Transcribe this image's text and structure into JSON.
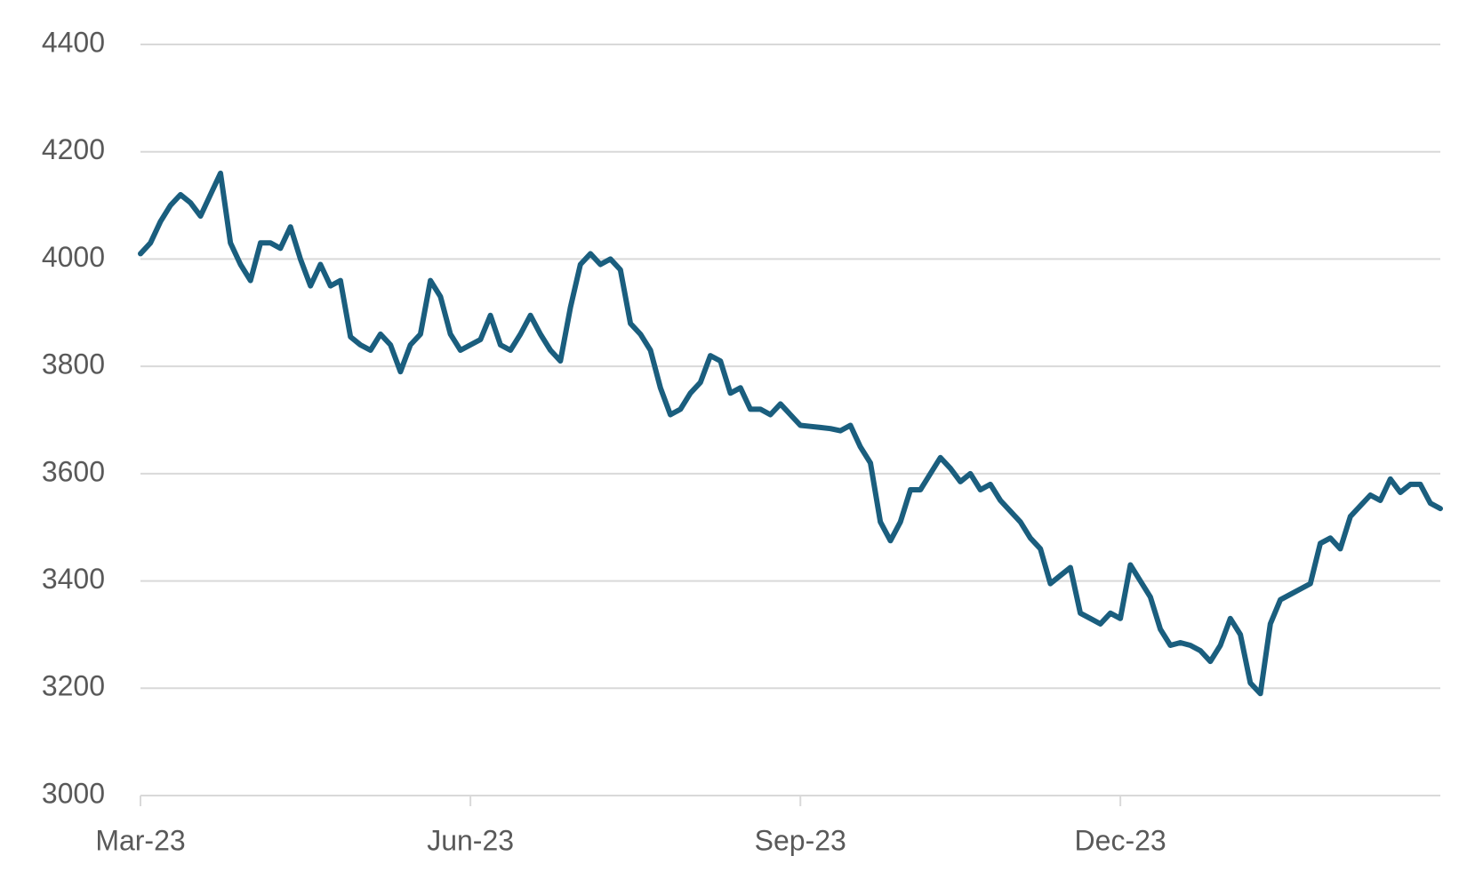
{
  "chart_data": {
    "type": "line",
    "categories": [
      "Mar-23",
      null,
      null,
      null,
      null,
      null,
      null,
      null,
      null,
      null,
      null,
      null,
      null,
      null,
      null,
      null,
      null,
      null,
      null,
      null,
      null,
      null,
      null,
      null,
      null,
      null,
      null,
      null,
      null,
      null,
      null,
      null,
      null,
      "Jun-23",
      null,
      null,
      null,
      null,
      null,
      null,
      null,
      null,
      null,
      null,
      null,
      null,
      null,
      null,
      null,
      null,
      null,
      null,
      null,
      null,
      null,
      null,
      null,
      null,
      null,
      null,
      null,
      null,
      null,
      null,
      null,
      null,
      "Sep-23",
      null,
      null,
      null,
      null,
      null,
      null,
      null,
      null,
      null,
      null,
      null,
      null,
      null,
      null,
      null,
      null,
      null,
      null,
      null,
      null,
      null,
      null,
      null,
      null,
      null,
      null,
      null,
      null,
      null,
      null,
      null,
      "Dec-23",
      null,
      null,
      null,
      null,
      null,
      null,
      null,
      null,
      null,
      null,
      null,
      null,
      null,
      null,
      null,
      null,
      null,
      null,
      null,
      null,
      null,
      null,
      null,
      null,
      null,
      null,
      null,
      null,
      null,
      null,
      null,
      null
    ],
    "series": [
      {
        "color": "#1a5e7e",
        "values": [
          4010,
          4030,
          4070,
          4100,
          4120,
          4105,
          4080,
          4120,
          4160,
          4030,
          3990,
          3960,
          4030,
          4030,
          4020,
          4060,
          4000,
          3950,
          3990,
          3950,
          3960,
          3855,
          3840,
          3830,
          3860,
          3840,
          3790,
          3840,
          3860,
          3960,
          3930,
          3860,
          3830,
          3840,
          3850,
          3895,
          3840,
          3830,
          3860,
          3895,
          3860,
          3830,
          3810,
          3910,
          3990,
          4010,
          3990,
          4000,
          3980,
          3880,
          3860,
          3830,
          3760,
          3710,
          3720,
          3750,
          3770,
          3820,
          3810,
          3750,
          3760,
          3720,
          3720,
          3710,
          3730,
          3710,
          3690,
          3688,
          3686,
          3684,
          3680,
          3690,
          3650,
          3620,
          3510,
          3475,
          3510,
          3570,
          3570,
          3600,
          3630,
          3610,
          3585,
          3600,
          3570,
          3580,
          3550,
          3530,
          3510,
          3480,
          3460,
          3395,
          3410,
          3425,
          3340,
          3330,
          3320,
          3340,
          3330,
          3430,
          3400,
          3370,
          3310,
          3280,
          3285,
          3280,
          3270,
          3250,
          3280,
          3330,
          3300,
          3210,
          3190,
          3320,
          3365,
          3375,
          3385,
          3395,
          3470,
          3480,
          3460,
          3520,
          3540,
          3560,
          3550,
          3590,
          3565,
          3580,
          3580,
          3545,
          3535
        ]
      }
    ],
    "ylim": [
      3000,
      4400
    ],
    "yticks": [
      3000,
      3200,
      3400,
      3600,
      3800,
      4000,
      4200,
      4400
    ],
    "grid": true
  }
}
